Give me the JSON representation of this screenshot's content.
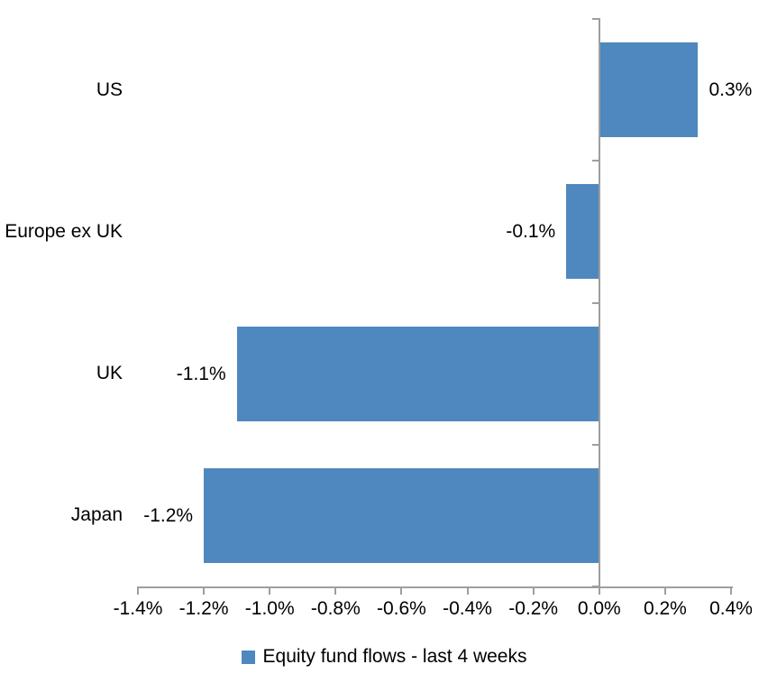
{
  "chart_data": {
    "type": "bar",
    "orientation": "horizontal",
    "title": "",
    "xlabel": "",
    "ylabel": "",
    "categories": [
      "US",
      "Europe ex UK",
      "UK",
      "Japan"
    ],
    "values": [
      0.3,
      -0.1,
      -1.1,
      -1.2
    ],
    "value_labels": [
      "0.3%",
      "-0.1%",
      "-1.1%",
      "-1.2%"
    ],
    "xlim": [
      -1.4,
      0.4
    ],
    "x_ticks": [
      {
        "v": -1.4,
        "label": "-1.4%"
      },
      {
        "v": -1.2,
        "label": "-1.2%"
      },
      {
        "v": -1.0,
        "label": "-1.0%"
      },
      {
        "v": -0.8,
        "label": "-0.8%"
      },
      {
        "v": -0.6,
        "label": "-0.6%"
      },
      {
        "v": -0.4,
        "label": "-0.4%"
      },
      {
        "v": -0.2,
        "label": "-0.2%"
      },
      {
        "v": 0.0,
        "label": "0.0%"
      },
      {
        "v": 0.2,
        "label": "0.2%"
      },
      {
        "v": 0.4,
        "label": "0.4%"
      }
    ],
    "grid": false,
    "legend": {
      "position": "bottom",
      "label": "Equity fund flows - last 4 weeks"
    },
    "colors": {
      "bar": "#4E88BE",
      "axis": "#9E9E9E",
      "text": "#000000",
      "background": "#FFFFFF"
    }
  }
}
